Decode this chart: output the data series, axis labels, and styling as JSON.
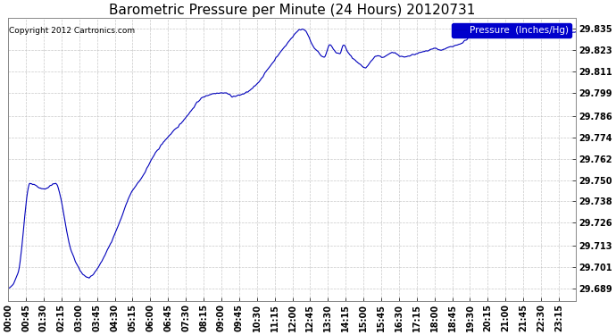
{
  "title": "Barometric Pressure per Minute (24 Hours) 20120731",
  "copyright": "Copyright 2012 Cartronics.com",
  "legend_label": "Pressure  (Inches/Hg)",
  "line_color": "#0000bb",
  "background_color": "#ffffff",
  "grid_color": "#bbbbbb",
  "yticks": [
    29.689,
    29.701,
    29.713,
    29.726,
    29.738,
    29.75,
    29.762,
    29.774,
    29.786,
    29.799,
    29.811,
    29.823,
    29.835
  ],
  "ylim": [
    29.682,
    29.841
  ],
  "xtick_labels": [
    "00:00",
    "00:45",
    "01:30",
    "02:15",
    "03:00",
    "03:45",
    "04:30",
    "05:15",
    "06:00",
    "06:45",
    "07:30",
    "08:15",
    "09:00",
    "09:45",
    "10:30",
    "11:15",
    "12:00",
    "12:45",
    "13:30",
    "14:15",
    "15:00",
    "15:45",
    "16:30",
    "17:15",
    "18:00",
    "18:45",
    "19:30",
    "20:15",
    "21:00",
    "21:45",
    "22:30",
    "23:15"
  ],
  "title_fontsize": 11,
  "tick_fontsize": 7,
  "legend_fontsize": 7.5,
  "copyright_fontsize": 6.5
}
